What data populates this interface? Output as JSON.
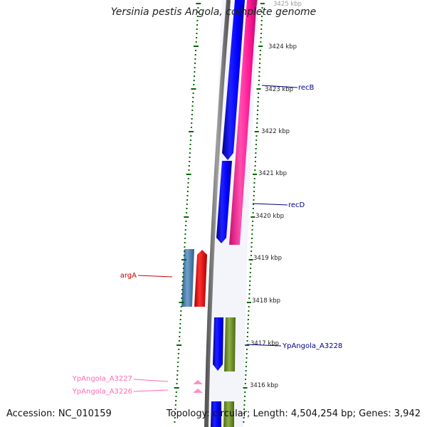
{
  "title": "Yersinia pestis Angola, complete genome",
  "accession": "Accession: NC_010159",
  "summary": "Topology: circular; Length: 4,504,254 bp; Genes: 3,942",
  "colors": {
    "backbone": "#808080",
    "forward_gene": "#0000ff",
    "reverse_gene": "#ff1493",
    "arg_gene": "#ff0000",
    "steel_gene": "#4682b4",
    "olive_gene": "#6b8e23",
    "tick": "#006400",
    "label_blue": "#00008b",
    "label_red": "#cc0000",
    "label_pink": "#ff69b4"
  },
  "scale_ticks": [
    "3425 kbp",
    "3424 kbp",
    "3423 kbp",
    "3422 kbp",
    "3421 kbp",
    "3420 kbp",
    "3419 kbp",
    "3418 kbp",
    "3417 kbp",
    "3416 kbp"
  ],
  "gene_labels": {
    "recB": "recB",
    "recD": "recD",
    "argA": "argA",
    "a3228": "YpAngola_A3228",
    "a3227": "YpAngola_A3227",
    "a3226": "YpAngola_A3226"
  }
}
